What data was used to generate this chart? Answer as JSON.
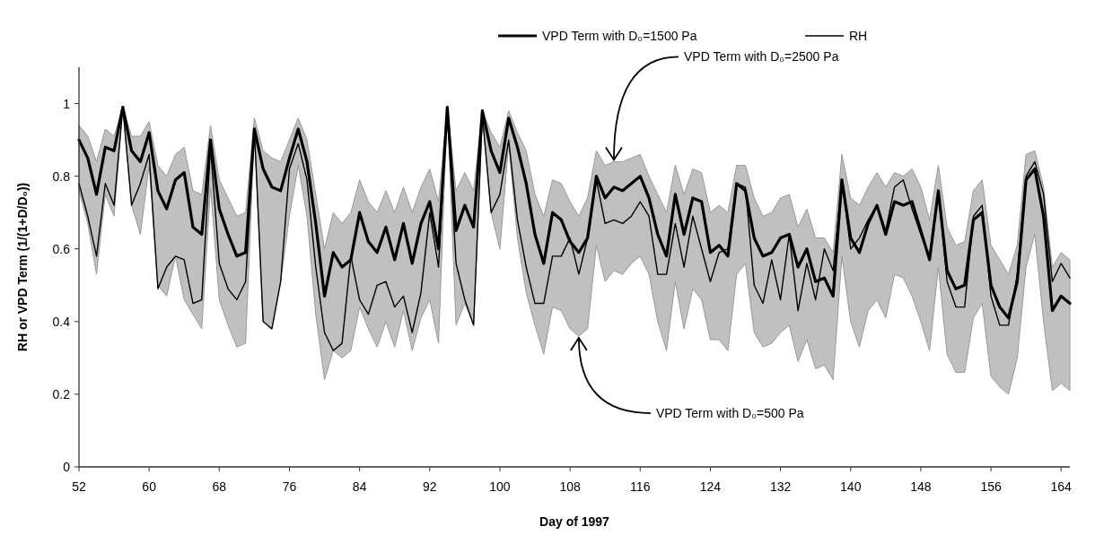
{
  "chart_data": {
    "type": "line",
    "xlabel": "Day of 1997",
    "ylabel": "RH  or  VPD Term (1/(1+D/D₀))",
    "x": [
      52,
      53,
      54,
      55,
      56,
      57,
      58,
      59,
      60,
      61,
      62,
      63,
      64,
      65,
      66,
      67,
      68,
      69,
      70,
      71,
      72,
      73,
      74,
      75,
      76,
      77,
      78,
      79,
      80,
      81,
      82,
      83,
      84,
      85,
      86,
      87,
      88,
      89,
      90,
      91,
      92,
      93,
      94,
      95,
      96,
      97,
      98,
      99,
      100,
      101,
      102,
      103,
      104,
      105,
      106,
      107,
      108,
      109,
      110,
      111,
      112,
      113,
      114,
      115,
      116,
      117,
      118,
      119,
      120,
      121,
      122,
      123,
      124,
      125,
      126,
      127,
      128,
      129,
      130,
      131,
      132,
      133,
      134,
      135,
      136,
      137,
      138,
      139,
      140,
      141,
      142,
      143,
      144,
      145,
      146,
      147,
      148,
      149,
      150,
      151,
      152,
      153,
      154,
      155,
      156,
      157,
      158,
      159,
      160,
      161,
      162,
      163,
      164,
      165
    ],
    "series": [
      {
        "name": "VPD Term with D₀=1500 Pa",
        "color": "#000000",
        "values": [
          0.9,
          0.85,
          0.75,
          0.88,
          0.87,
          0.99,
          0.87,
          0.84,
          0.92,
          0.76,
          0.71,
          0.79,
          0.81,
          0.66,
          0.64,
          0.9,
          0.71,
          0.64,
          0.58,
          0.59,
          0.93,
          0.82,
          0.77,
          0.76,
          0.85,
          0.93,
          0.84,
          0.67,
          0.47,
          0.59,
          0.55,
          0.57,
          0.7,
          0.62,
          0.59,
          0.66,
          0.57,
          0.67,
          0.56,
          0.67,
          0.73,
          0.6,
          0.99,
          0.65,
          0.72,
          0.66,
          0.98,
          0.87,
          0.81,
          0.96,
          0.88,
          0.78,
          0.64,
          0.56,
          0.7,
          0.68,
          0.62,
          0.59,
          0.63,
          0.8,
          0.74,
          0.77,
          0.76,
          0.78,
          0.8,
          0.74,
          0.64,
          0.58,
          0.75,
          0.64,
          0.74,
          0.73,
          0.59,
          0.61,
          0.58,
          0.78,
          0.76,
          0.63,
          0.58,
          0.59,
          0.63,
          0.64,
          0.55,
          0.6,
          0.51,
          0.52,
          0.47,
          0.79,
          0.63,
          0.59,
          0.67,
          0.72,
          0.64,
          0.73,
          0.72,
          0.73,
          0.65,
          0.57,
          0.76,
          0.54,
          0.49,
          0.5,
          0.68,
          0.7,
          0.5,
          0.44,
          0.41,
          0.51,
          0.79,
          0.82,
          0.69,
          0.43,
          0.47,
          0.45
        ],
        "lower": [
          0.76,
          0.67,
          0.53,
          0.75,
          0.69,
          0.99,
          0.72,
          0.64,
          0.83,
          0.5,
          0.47,
          0.58,
          0.46,
          0.42,
          0.38,
          0.77,
          0.46,
          0.39,
          0.33,
          0.34,
          0.92,
          0.4,
          0.38,
          0.51,
          0.69,
          0.83,
          0.69,
          0.42,
          0.24,
          0.32,
          0.3,
          0.32,
          0.44,
          0.38,
          0.33,
          0.4,
          0.33,
          0.43,
          0.32,
          0.41,
          0.46,
          0.34,
          0.99,
          0.39,
          0.45,
          0.39,
          0.96,
          0.7,
          0.6,
          0.89,
          0.63,
          0.48,
          0.39,
          0.31,
          0.44,
          0.43,
          0.38,
          0.36,
          0.38,
          0.61,
          0.51,
          0.54,
          0.53,
          0.56,
          0.58,
          0.53,
          0.4,
          0.32,
          0.51,
          0.38,
          0.49,
          0.46,
          0.35,
          0.35,
          0.32,
          0.53,
          0.56,
          0.37,
          0.33,
          0.34,
          0.37,
          0.39,
          0.29,
          0.35,
          0.27,
          0.28,
          0.24,
          0.58,
          0.4,
          0.33,
          0.43,
          0.46,
          0.41,
          0.53,
          0.52,
          0.47,
          0.4,
          0.32,
          0.55,
          0.31,
          0.26,
          0.26,
          0.41,
          0.45,
          0.25,
          0.22,
          0.2,
          0.3,
          0.55,
          0.64,
          0.4,
          0.21,
          0.23,
          0.21
        ],
        "upper": [
          0.94,
          0.91,
          0.84,
          0.93,
          0.91,
          0.99,
          0.91,
          0.91,
          0.95,
          0.83,
          0.8,
          0.86,
          0.88,
          0.76,
          0.75,
          0.94,
          0.79,
          0.74,
          0.69,
          0.7,
          0.96,
          0.87,
          0.85,
          0.84,
          0.9,
          0.96,
          0.9,
          0.75,
          0.6,
          0.7,
          0.67,
          0.7,
          0.79,
          0.73,
          0.7,
          0.76,
          0.7,
          0.77,
          0.7,
          0.77,
          0.82,
          0.73,
          0.99,
          0.76,
          0.81,
          0.76,
          0.98,
          0.92,
          0.88,
          0.98,
          0.92,
          0.87,
          0.75,
          0.69,
          0.79,
          0.78,
          0.73,
          0.69,
          0.74,
          0.87,
          0.83,
          0.84,
          0.84,
          0.85,
          0.86,
          0.8,
          0.75,
          0.7,
          0.83,
          0.75,
          0.82,
          0.81,
          0.7,
          0.72,
          0.7,
          0.83,
          0.83,
          0.74,
          0.69,
          0.7,
          0.74,
          0.75,
          0.66,
          0.71,
          0.63,
          0.63,
          0.59,
          0.86,
          0.74,
          0.72,
          0.77,
          0.81,
          0.77,
          0.81,
          0.8,
          0.82,
          0.77,
          0.68,
          0.83,
          0.66,
          0.61,
          0.62,
          0.76,
          0.79,
          0.61,
          0.57,
          0.53,
          0.61,
          0.86,
          0.87,
          0.77,
          0.55,
          0.59,
          0.57
        ]
      },
      {
        "name": "RH",
        "color": "#000000",
        "values": [
          0.78,
          0.69,
          0.58,
          0.78,
          0.72,
          0.99,
          0.72,
          0.78,
          0.86,
          0.49,
          0.55,
          0.58,
          0.57,
          0.45,
          0.46,
          0.88,
          0.56,
          0.49,
          0.46,
          0.51,
          0.93,
          0.4,
          0.38,
          0.51,
          0.82,
          0.89,
          0.79,
          0.55,
          0.37,
          0.32,
          0.34,
          0.58,
          0.46,
          0.42,
          0.5,
          0.51,
          0.44,
          0.47,
          0.37,
          0.48,
          0.7,
          0.55,
          0.99,
          0.56,
          0.46,
          0.39,
          0.97,
          0.7,
          0.75,
          0.9,
          0.68,
          0.55,
          0.45,
          0.45,
          0.58,
          0.58,
          0.63,
          0.53,
          0.63,
          0.79,
          0.67,
          0.68,
          0.67,
          0.69,
          0.73,
          0.69,
          0.53,
          0.53,
          0.67,
          0.55,
          0.69,
          0.6,
          0.51,
          0.59,
          0.6,
          0.78,
          0.77,
          0.5,
          0.45,
          0.57,
          0.46,
          0.64,
          0.43,
          0.56,
          0.46,
          0.6,
          0.54,
          0.79,
          0.6,
          0.63,
          0.68,
          0.72,
          0.65,
          0.77,
          0.79,
          0.71,
          0.64,
          0.58,
          0.76,
          0.51,
          0.44,
          0.44,
          0.69,
          0.72,
          0.47,
          0.39,
          0.39,
          0.53,
          0.8,
          0.84,
          0.75,
          0.51,
          0.56,
          0.52
        ]
      }
    ],
    "xlim": [
      52,
      165
    ],
    "xticks": [
      52,
      60,
      68,
      76,
      84,
      92,
      100,
      108,
      116,
      124,
      132,
      140,
      148,
      156,
      164
    ],
    "ylim": [
      0,
      1.1
    ],
    "yticks": [
      0,
      0.2,
      0.4,
      0.6,
      0.8,
      1
    ],
    "annotations": [
      {
        "text": "VPD Term with D₀=2500 Pa",
        "x": 113,
        "y": 0.84
      },
      {
        "text": "VPD Term with D₀=500 Pa",
        "x": 109,
        "y": 0.36
      }
    ],
    "legend": "top right",
    "marker": "none",
    "line_style": "solid"
  }
}
